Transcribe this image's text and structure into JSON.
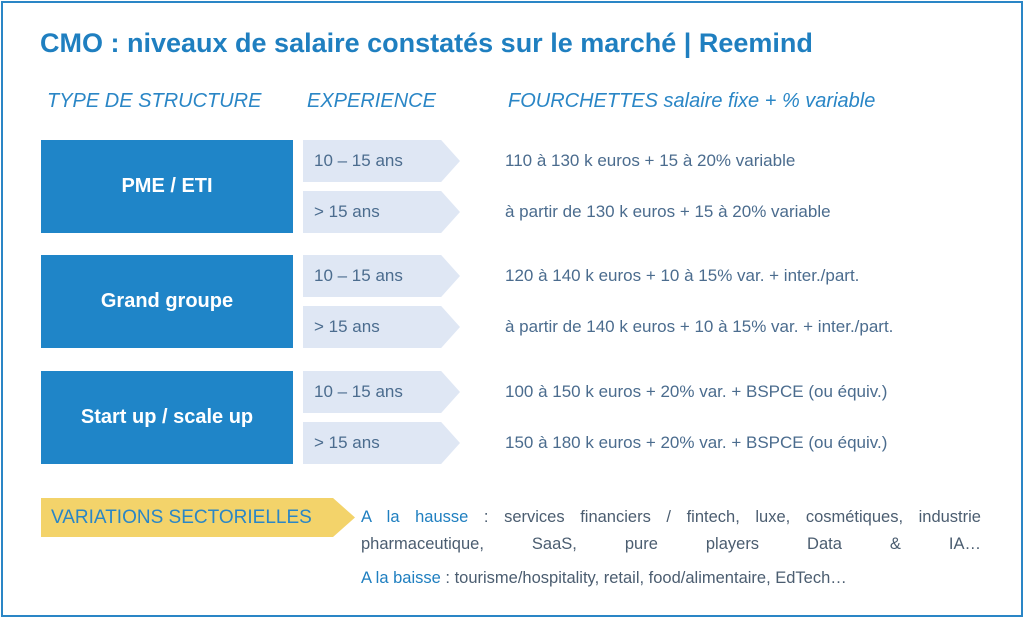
{
  "title": "CMO : niveaux de salaire constatés sur le marché | Reemind",
  "headers": [
    "TYPE DE STRUCTURE",
    "EXPERIENCE",
    "FOURCHETTES salaire fixe + % variable"
  ],
  "groups": [
    {
      "label": "PME / ETI",
      "rows": [
        {
          "experience": "10 – 15 ans",
          "range": "110 à 130 k euros + 15 à 20% variable"
        },
        {
          "experience": "> 15 ans",
          "range": "à partir de 130 k euros + 15 à 20% variable"
        }
      ]
    },
    {
      "label": "Grand groupe",
      "rows": [
        {
          "experience": "10 – 15 ans",
          "range": "120 à 140 k euros + 10 à 15% var. + inter./part."
        },
        {
          "experience": "> 15 ans",
          "range": "à partir de 140 k euros + 10 à 15% var. + inter./part."
        }
      ]
    },
    {
      "label": "Start up / scale up",
      "rows": [
        {
          "experience": "10 – 15 ans",
          "range": "100 à 150 k euros + 20% var. + BSPCE (ou équiv.)"
        },
        {
          "experience": "> 15 ans",
          "range": "150 à 180 k euros + 20% var. + BSPCE (ou équiv.)"
        }
      ]
    }
  ],
  "sector": {
    "label": "VARIATIONS SECTORIELLES",
    "up_label": "A la hausse",
    "up_text": ": services financiers / fintech, luxe, cosmétiques, industrie pharmaceutique, SaaS, pure players Data & IA…",
    "down_label": "A la baisse",
    "down_text": ": tourisme/hospitality, retail, food/alimentaire, EdTech…"
  }
}
